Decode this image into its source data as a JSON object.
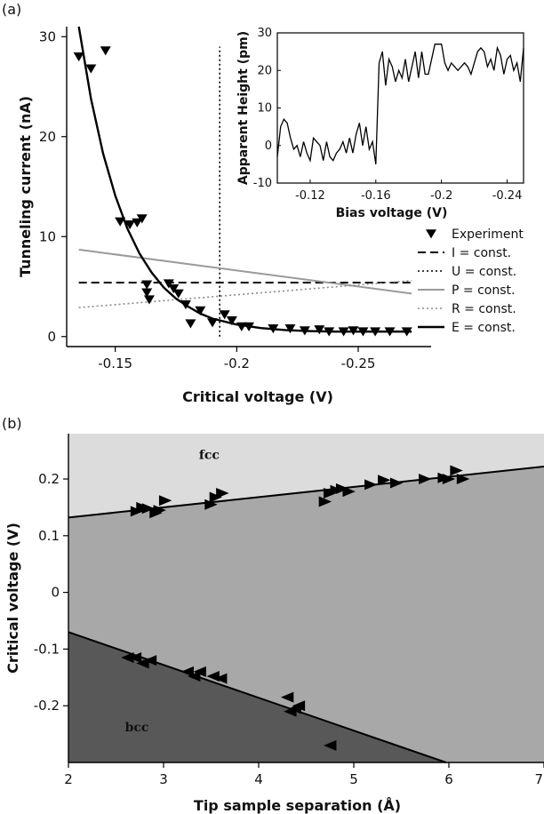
{
  "chart_data": [
    {
      "panel": "(a)",
      "type": "scatter",
      "xlabel": "Critical voltage (V)",
      "ylabel": "Tunneling current (nA)",
      "xlim": [
        -0.13,
        -0.28
      ],
      "ylim": [
        -1,
        31
      ],
      "xticks": [
        -0.15,
        -0.2,
        -0.25
      ],
      "xtick_labels": [
        "-0.15",
        "-0.2",
        "-0.25"
      ],
      "yticks": [
        0,
        10,
        20,
        30
      ],
      "ytick_labels": [
        "0",
        "10",
        "20",
        "30"
      ],
      "legend_position": "bottom-right",
      "series": [
        {
          "name": "Experiment",
          "marker": "down-triangle",
          "x": [
            -0.135,
            -0.14,
            -0.146,
            -0.152,
            -0.156,
            -0.159,
            -0.161,
            -0.163,
            -0.163,
            -0.164,
            -0.172,
            -0.174,
            -0.176,
            -0.179,
            -0.181,
            -0.185,
            -0.19,
            -0.195,
            -0.198,
            -0.202,
            -0.205,
            -0.215,
            -0.222,
            -0.228,
            -0.234,
            -0.238,
            -0.244,
            -0.248,
            -0.252,
            -0.257,
            -0.263,
            -0.27
          ],
          "y": [
            28.0,
            26.8,
            28.6,
            11.5,
            11.2,
            11.4,
            11.8,
            5.2,
            4.4,
            3.7,
            5.3,
            4.8,
            4.3,
            3.2,
            1.3,
            2.6,
            1.4,
            2.2,
            1.6,
            1.0,
            1.0,
            0.8,
            0.8,
            0.6,
            0.7,
            0.5,
            0.5,
            0.6,
            0.5,
            0.5,
            0.5,
            0.5
          ]
        },
        {
          "name": "I = const.",
          "style": "dashed",
          "color": "#000000",
          "x": [
            -0.135,
            -0.272
          ],
          "y": [
            5.4,
            5.4
          ]
        },
        {
          "name": "U = const.",
          "style": "dotted",
          "color": "#000000",
          "x": [
            -0.193,
            -0.193
          ],
          "y": [
            0,
            29
          ]
        },
        {
          "name": "P = const.",
          "style": "solid",
          "color": "#9a9a9a",
          "x": [
            -0.135,
            -0.272
          ],
          "y": [
            8.7,
            4.3
          ]
        },
        {
          "name": "R = const.",
          "style": "dotted",
          "color": "#8a8a8a",
          "x": [
            -0.135,
            -0.272
          ],
          "y": [
            2.9,
            5.6
          ]
        },
        {
          "name": "E = const.",
          "style": "solid-thick",
          "color": "#000000",
          "x": [
            -0.135,
            -0.14,
            -0.145,
            -0.15,
            -0.155,
            -0.16,
            -0.165,
            -0.17,
            -0.175,
            -0.18,
            -0.185,
            -0.19,
            -0.2,
            -0.21,
            -0.22,
            -0.23,
            -0.24,
            -0.25,
            -0.26,
            -0.272
          ],
          "y": [
            31.0,
            23.8,
            18.3,
            14.1,
            10.8,
            8.3,
            6.4,
            4.9,
            3.8,
            3.0,
            2.3,
            1.8,
            1.2,
            0.85,
            0.65,
            0.55,
            0.5,
            0.5,
            0.5,
            0.5
          ]
        }
      ]
    },
    {
      "panel": "inset",
      "type": "line",
      "xlabel": "Bias voltage (V)",
      "ylabel": "Apparent Height (pm)",
      "xlim": [
        -0.1,
        -0.25
      ],
      "ylim": [
        -10,
        30
      ],
      "xticks": [
        -0.12,
        -0.16,
        -0.2,
        -0.24
      ],
      "xtick_labels": [
        "-0.12",
        "-0.16",
        "-0.2",
        "-0.24"
      ],
      "yticks": [
        -10,
        0,
        10,
        20,
        30
      ],
      "ytick_labels": [
        "-10",
        "0",
        "10",
        "20",
        "30"
      ],
      "x": [
        -0.1,
        -0.102,
        -0.104,
        -0.106,
        -0.108,
        -0.11,
        -0.112,
        -0.114,
        -0.116,
        -0.118,
        -0.12,
        -0.122,
        -0.124,
        -0.126,
        -0.128,
        -0.13,
        -0.132,
        -0.134,
        -0.136,
        -0.138,
        -0.14,
        -0.142,
        -0.144,
        -0.146,
        -0.148,
        -0.15,
        -0.152,
        -0.154,
        -0.156,
        -0.158,
        -0.16,
        -0.162,
        -0.164,
        -0.166,
        -0.168,
        -0.17,
        -0.172,
        -0.174,
        -0.176,
        -0.178,
        -0.18,
        -0.182,
        -0.184,
        -0.186,
        -0.188,
        -0.19,
        -0.192,
        -0.194,
        -0.196,
        -0.198,
        -0.2,
        -0.202,
        -0.204,
        -0.206,
        -0.208,
        -0.21,
        -0.212,
        -0.214,
        -0.216,
        -0.218,
        -0.22,
        -0.222,
        -0.224,
        -0.226,
        -0.228,
        -0.23,
        -0.232,
        -0.234,
        -0.236,
        -0.238,
        -0.24,
        -0.242,
        -0.244,
        -0.246,
        -0.248,
        -0.25
      ],
      "y": [
        -3,
        5,
        7,
        6,
        2,
        -1,
        0,
        -3,
        1,
        -2,
        -4,
        2,
        1,
        0,
        -4,
        1,
        -3,
        -4,
        -2,
        -1,
        1,
        -2,
        2,
        -2,
        3,
        6,
        0,
        5,
        -1,
        1,
        -5,
        22,
        25,
        16,
        23,
        21,
        17,
        20,
        18,
        23,
        17,
        21,
        25,
        18,
        25,
        19,
        19,
        23,
        27,
        27,
        27,
        22,
        20,
        22,
        21,
        20,
        21,
        22,
        21,
        19,
        22,
        25,
        26,
        25,
        21,
        23,
        20,
        26,
        24,
        19,
        23,
        24,
        20,
        22,
        17,
        26
      ]
    },
    {
      "panel": "(b)",
      "type": "scatter",
      "xlabel": "Tip sample separation (Å)",
      "ylabel": "Critical voltage (V)",
      "xlim": [
        2,
        7
      ],
      "ylim": [
        -0.3,
        0.28
      ],
      "xticks": [
        2,
        3,
        4,
        5,
        6,
        7
      ],
      "xtick_labels": [
        "2",
        "3",
        "4",
        "5",
        "6",
        "7"
      ],
      "yticks": [
        0.2,
        0.1,
        0,
        -0.1,
        -0.2
      ],
      "ytick_labels": [
        "0.2",
        "0.1",
        "0",
        "-0.1",
        "-0.2"
      ],
      "regions": [
        {
          "label": "fcc",
          "color": "#dcdcdc",
          "label_x": 3.48,
          "label_y": 0.235
        },
        {
          "label": "",
          "color": "#a8a8a8"
        },
        {
          "label": "bcc",
          "color": "#585858",
          "label_x": 2.72,
          "label_y": -0.245
        }
      ],
      "boundary_upper": {
        "x": [
          2,
          7
        ],
        "y": [
          0.132,
          0.222
        ]
      },
      "boundary_lower": {
        "x": [
          2,
          5.97
        ],
        "y": [
          -0.07,
          -0.3
        ]
      },
      "series": [
        {
          "marker": "right-triangle",
          "x": [
            2.72,
            2.78,
            2.84,
            2.92,
            2.96,
            3.02,
            3.5,
            3.55,
            3.62,
            4.7,
            4.75,
            4.82,
            4.88,
            4.95,
            5.18,
            5.32,
            5.45,
            5.75,
            5.95,
            6.0,
            6.08,
            6.15
          ],
          "y": [
            0.143,
            0.15,
            0.148,
            0.14,
            0.145,
            0.162,
            0.155,
            0.168,
            0.175,
            0.16,
            0.175,
            0.18,
            0.183,
            0.178,
            0.19,
            0.198,
            0.193,
            0.2,
            0.202,
            0.2,
            0.215,
            0.2
          ]
        },
        {
          "marker": "left-triangle",
          "x": [
            2.62,
            2.7,
            2.78,
            2.86,
            3.25,
            3.32,
            3.38,
            3.52,
            3.6,
            4.3,
            4.33,
            4.38,
            4.42,
            4.75
          ],
          "y": [
            -0.115,
            -0.115,
            -0.125,
            -0.12,
            -0.14,
            -0.148,
            -0.14,
            -0.148,
            -0.152,
            -0.185,
            -0.21,
            -0.205,
            -0.2,
            -0.27
          ]
        }
      ]
    }
  ]
}
